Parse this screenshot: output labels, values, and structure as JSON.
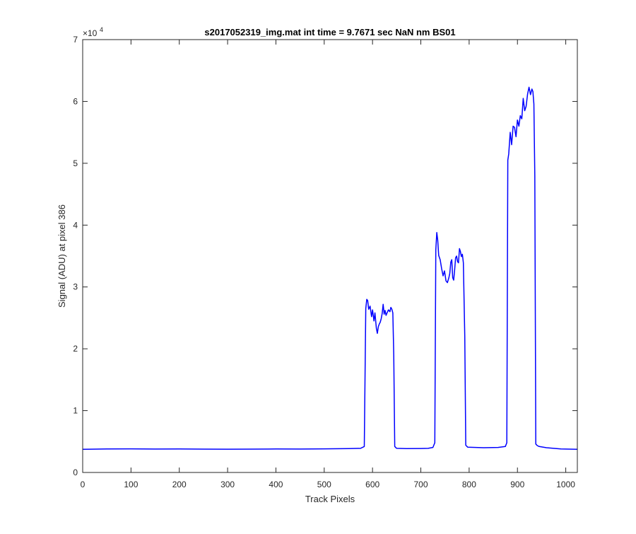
{
  "chart_data": {
    "type": "line",
    "title": "s2017052319_img.mat int time = 9.7671 sec  NaN nm BS01",
    "xlabel": "Track Pixels",
    "ylabel": "Signal (ADU) at pixel 386",
    "xlim": [
      0,
      1024
    ],
    "ylim": [
      0,
      70000
    ],
    "x_ticks": [
      0,
      100,
      200,
      300,
      400,
      500,
      600,
      700,
      800,
      900,
      1000
    ],
    "y_ticks": [
      0,
      1,
      2,
      3,
      4,
      5,
      6,
      7
    ],
    "y_tick_labels": [
      "0",
      "1",
      "2",
      "3",
      "4",
      "5",
      "6",
      "7"
    ],
    "y_exponent_base": "×10",
    "y_exponent_power": "4",
    "grid": false,
    "line_color": "#0000ff",
    "axis_color": "#262626",
    "series": [
      {
        "x": [
          0,
          50,
          100,
          150,
          200,
          250,
          300,
          350,
          400,
          450,
          500,
          550,
          575,
          583,
          586,
          588,
          590,
          592,
          595,
          598,
          600,
          603,
          605,
          608,
          610,
          612,
          614,
          616,
          618,
          620,
          622,
          624,
          626,
          628,
          630,
          633,
          636,
          638,
          640,
          642,
          644,
          646,
          650,
          670,
          700,
          715,
          725,
          729,
          731,
          733,
          735,
          737,
          740,
          743,
          746,
          749,
          752,
          755,
          758,
          760,
          762,
          764,
          766,
          768,
          770,
          772,
          774,
          776,
          778,
          780,
          782,
          784,
          786,
          788,
          791,
          793,
          797,
          830,
          860,
          875,
          878,
          880,
          882,
          885,
          888,
          891,
          894,
          897,
          900,
          903,
          906,
          909,
          912,
          915,
          918,
          921,
          924,
          927,
          930,
          932,
          934,
          936,
          938,
          941,
          945,
          960,
          990,
          1024
        ],
        "y": [
          3750,
          3800,
          3820,
          3790,
          3800,
          3780,
          3760,
          3780,
          3800,
          3790,
          3820,
          3850,
          3900,
          4200,
          26500,
          28000,
          27800,
          26400,
          26900,
          25200,
          26300,
          24500,
          25800,
          23300,
          22500,
          23600,
          24000,
          24300,
          24900,
          25700,
          27200,
          25600,
          26200,
          25400,
          25800,
          26300,
          26000,
          26700,
          26400,
          25800,
          19000,
          4200,
          3900,
          3850,
          3880,
          3900,
          4050,
          4800,
          36000,
          38800,
          37600,
          35100,
          34400,
          33000,
          31800,
          32600,
          31000,
          30700,
          31500,
          32200,
          34000,
          34400,
          31500,
          31100,
          32800,
          34700,
          35000,
          34100,
          33900,
          36200,
          35700,
          34900,
          35300,
          33900,
          22000,
          4400,
          4100,
          4000,
          4050,
          4200,
          4800,
          50500,
          51500,
          55000,
          53000,
          56000,
          55800,
          54300,
          57000,
          56000,
          57700,
          57200,
          60500,
          58500,
          59200,
          61200,
          62300,
          61100,
          62000,
          61600,
          59600,
          48000,
          4600,
          4350,
          4200,
          4000,
          3800,
          3750
        ]
      }
    ]
  }
}
